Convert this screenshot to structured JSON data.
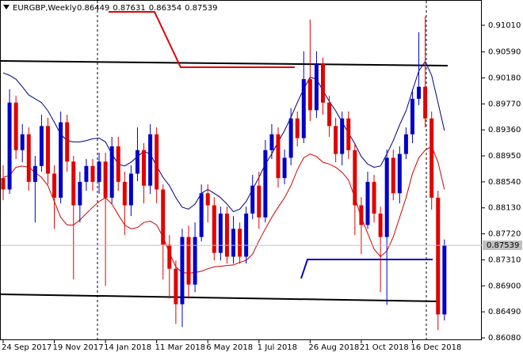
{
  "chart_data": {
    "type": "candlestick",
    "symbol": "EURGBP,Weekly",
    "categories": [
      "24 Sep 2017",
      null,
      null,
      null,
      null,
      null,
      null,
      null,
      "19 Nov 2017",
      null,
      null,
      null,
      null,
      null,
      null,
      null,
      "14 Jan 2018",
      null,
      null,
      null,
      null,
      null,
      null,
      null,
      "11 Mar 2018",
      null,
      null,
      null,
      null,
      null,
      null,
      null,
      "6 May 2018",
      null,
      null,
      null,
      null,
      null,
      null,
      null,
      "1 Jul 2018",
      null,
      null,
      null,
      null,
      null,
      null,
      null,
      "26 Aug 2018",
      null,
      null,
      null,
      null,
      null,
      null,
      null,
      "21 Oct 2018",
      null,
      null,
      null,
      null,
      null,
      null,
      null,
      "16 Dec 2018",
      null,
      null,
      null,
      null,
      null
    ],
    "open": [
      0.886,
      0.8842,
      0.8979,
      0.8904,
      0.8929,
      0.8854,
      0.8879,
      0.8942,
      0.8867,
      0.8829,
      0.8948,
      0.8886,
      0.8817,
      0.8854,
      0.8879,
      0.8854,
      0.8886,
      0.8829,
      0.891,
      0.8854,
      0.8817,
      0.8867,
      0.8904,
      0.8848,
      0.8929,
      0.8842,
      0.8755,
      0.8717,
      0.8661,
      0.8767,
      0.8692,
      0.8767,
      0.8836,
      0.8817,
      0.8742,
      0.8804,
      0.8736,
      0.878,
      0.8736,
      0.8804,
      0.8848,
      0.8798,
      0.8904,
      0.8929,
      0.886,
      0.8892,
      0.8954,
      0.8923,
      0.9016,
      0.8967,
      0.9041,
      0.8979,
      0.8942,
      0.8898,
      0.8954,
      0.8904,
      0.8817,
      0.8786,
      0.8854,
      0.8804,
      0.8767,
      0.8892,
      0.8836,
      0.8898,
      0.8929,
      0.8985,
      0.9004,
      0.8954,
      0.8829,
      0.86449
    ],
    "high": [
      0.888,
      0.9,
      0.899,
      0.8945,
      0.894,
      0.8895,
      0.896,
      0.8955,
      0.888,
      0.8965,
      0.896,
      0.8895,
      0.887,
      0.889,
      0.889,
      0.89,
      0.89,
      0.8925,
      0.8925,
      0.887,
      0.888,
      0.894,
      0.8915,
      0.8945,
      0.894,
      0.885,
      0.877,
      0.873,
      0.878,
      0.8785,
      0.879,
      0.885,
      0.885,
      0.883,
      0.8815,
      0.8815,
      0.88,
      0.879,
      0.8815,
      0.8865,
      0.887,
      0.892,
      0.8945,
      0.894,
      0.8905,
      0.897,
      0.8965,
      0.906,
      0.911,
      0.906,
      0.905,
      0.899,
      0.8955,
      0.8965,
      0.8965,
      0.8915,
      0.883,
      0.887,
      0.8865,
      0.8815,
      0.8905,
      0.8905,
      0.891,
      0.894,
      0.9,
      0.909,
      0.9115,
      0.8965,
      0.884,
      0.87631
    ],
    "low": [
      0.8825,
      0.8835,
      0.889,
      0.8885,
      0.884,
      0.879,
      0.887,
      0.885,
      0.878,
      0.882,
      0.887,
      0.87,
      0.879,
      0.884,
      0.884,
      0.8835,
      0.869,
      0.882,
      0.884,
      0.877,
      0.88,
      0.8855,
      0.882,
      0.8835,
      0.882,
      0.87,
      0.867,
      0.863,
      0.8625,
      0.867,
      0.868,
      0.876,
      0.879,
      0.873,
      0.873,
      0.8725,
      0.8725,
      0.8725,
      0.8725,
      0.8795,
      0.878,
      0.879,
      0.889,
      0.8845,
      0.885,
      0.888,
      0.891,
      0.8915,
      0.895,
      0.8955,
      0.896,
      0.8925,
      0.8885,
      0.888,
      0.889,
      0.877,
      0.874,
      0.878,
      0.879,
      0.868,
      0.866,
      0.8825,
      0.882,
      0.889,
      0.8915,
      0.8975,
      0.894,
      0.881,
      0.862,
      0.86354
    ],
    "close": [
      0.8842,
      0.8979,
      0.8904,
      0.8929,
      0.8854,
      0.8879,
      0.8942,
      0.8867,
      0.8829,
      0.8948,
      0.8886,
      0.8817,
      0.8854,
      0.8879,
      0.8854,
      0.8886,
      0.8829,
      0.891,
      0.8854,
      0.8817,
      0.8867,
      0.8904,
      0.8848,
      0.8929,
      0.8842,
      0.8755,
      0.8717,
      0.8661,
      0.8767,
      0.8692,
      0.8767,
      0.8836,
      0.8817,
      0.8742,
      0.8804,
      0.8736,
      0.878,
      0.8736,
      0.8804,
      0.8848,
      0.8798,
      0.8904,
      0.8929,
      0.886,
      0.8892,
      0.8954,
      0.8923,
      0.9016,
      0.8967,
      0.9041,
      0.8979,
      0.8942,
      0.8898,
      0.8954,
      0.8904,
      0.8817,
      0.8786,
      0.8854,
      0.8804,
      0.8767,
      0.8892,
      0.8836,
      0.8898,
      0.8929,
      0.8985,
      0.9004,
      0.8954,
      0.8829,
      0.8645,
      0.87539
    ],
    "up_color": "#0000c8",
    "down_color": "#e00000",
    "indicators": [
      {
        "color": "#000080",
        "values": [
          0.9026,
          0.9022,
          0.9016,
          0.9004,
          0.8991,
          0.8985,
          0.8979,
          0.8966,
          0.8948,
          0.8929,
          0.8919,
          0.8917,
          0.8917,
          0.8919,
          0.8922,
          0.8923,
          0.8917,
          0.8898,
          0.8882,
          0.8879,
          0.8885,
          0.8894,
          0.8902,
          0.8898,
          0.8879,
          0.8861,
          0.8848,
          0.8829,
          0.8814,
          0.8811,
          0.8819,
          0.8836,
          0.8842,
          0.8836,
          0.8829,
          0.8819,
          0.8807,
          0.8811,
          0.8823,
          0.8842,
          0.8861,
          0.8882,
          0.8898,
          0.8917,
          0.8935,
          0.8956,
          0.8979,
          0.9001,
          0.9019,
          0.9016,
          0.8998,
          0.8981,
          0.8966,
          0.8948,
          0.8931,
          0.8914,
          0.8894,
          0.8882,
          0.8877,
          0.8879,
          0.8898,
          0.8919,
          0.8944,
          0.8966,
          0.8998,
          0.9029,
          0.9044,
          0.9022,
          0.8979,
          0.8935
        ]
      },
      {
        "color": "#d00000",
        "values": [
          0.8861,
          0.8864,
          0.8877,
          0.8879,
          0.8877,
          0.8869,
          0.8861,
          0.8848,
          0.8823,
          0.8798,
          0.8786,
          0.8786,
          0.8794,
          0.8804,
          0.8814,
          0.8823,
          0.8829,
          0.8819,
          0.8802,
          0.8786,
          0.878,
          0.8782,
          0.879,
          0.8792,
          0.8786,
          0.8767,
          0.8742,
          0.872,
          0.8711,
          0.871,
          0.8711,
          0.8713,
          0.8717,
          0.872,
          0.8721,
          0.8722,
          0.8723,
          0.8727,
          0.873,
          0.874,
          0.8761,
          0.878,
          0.8798,
          0.8814,
          0.8829,
          0.8848,
          0.8873,
          0.8892,
          0.8898,
          0.8894,
          0.8885,
          0.8882,
          0.8877,
          0.8869,
          0.8857,
          0.8829,
          0.8798,
          0.8773,
          0.8748,
          0.8736,
          0.8745,
          0.8767,
          0.8798,
          0.8829,
          0.8867,
          0.8892,
          0.8904,
          0.891,
          0.8885,
          0.8842
        ]
      }
    ],
    "ylim": [
      0.86043,
      0.91346
    ],
    "yticks": [
      {
        "value": 0.9101,
        "label": "0.91010"
      },
      {
        "value": 0.9059,
        "label": "0.90590"
      },
      {
        "value": 0.9018,
        "label": "0.90180"
      },
      {
        "value": 0.8977,
        "label": "0.89770"
      },
      {
        "value": 0.8936,
        "label": "0.89360"
      },
      {
        "value": 0.8895,
        "label": "0.88950"
      },
      {
        "value": 0.8854,
        "label": "0.88540"
      },
      {
        "value": 0.8813,
        "label": "0.88130"
      },
      {
        "value": 0.8772,
        "label": "0.87720"
      },
      {
        "value": 0.8731,
        "label": "0.87310"
      },
      {
        "value": 0.869,
        "label": "0.86900"
      },
      {
        "value": 0.8649,
        "label": "0.86490"
      },
      {
        "value": 0.8608,
        "label": "0.86080"
      }
    ],
    "grid": false
  }
}
